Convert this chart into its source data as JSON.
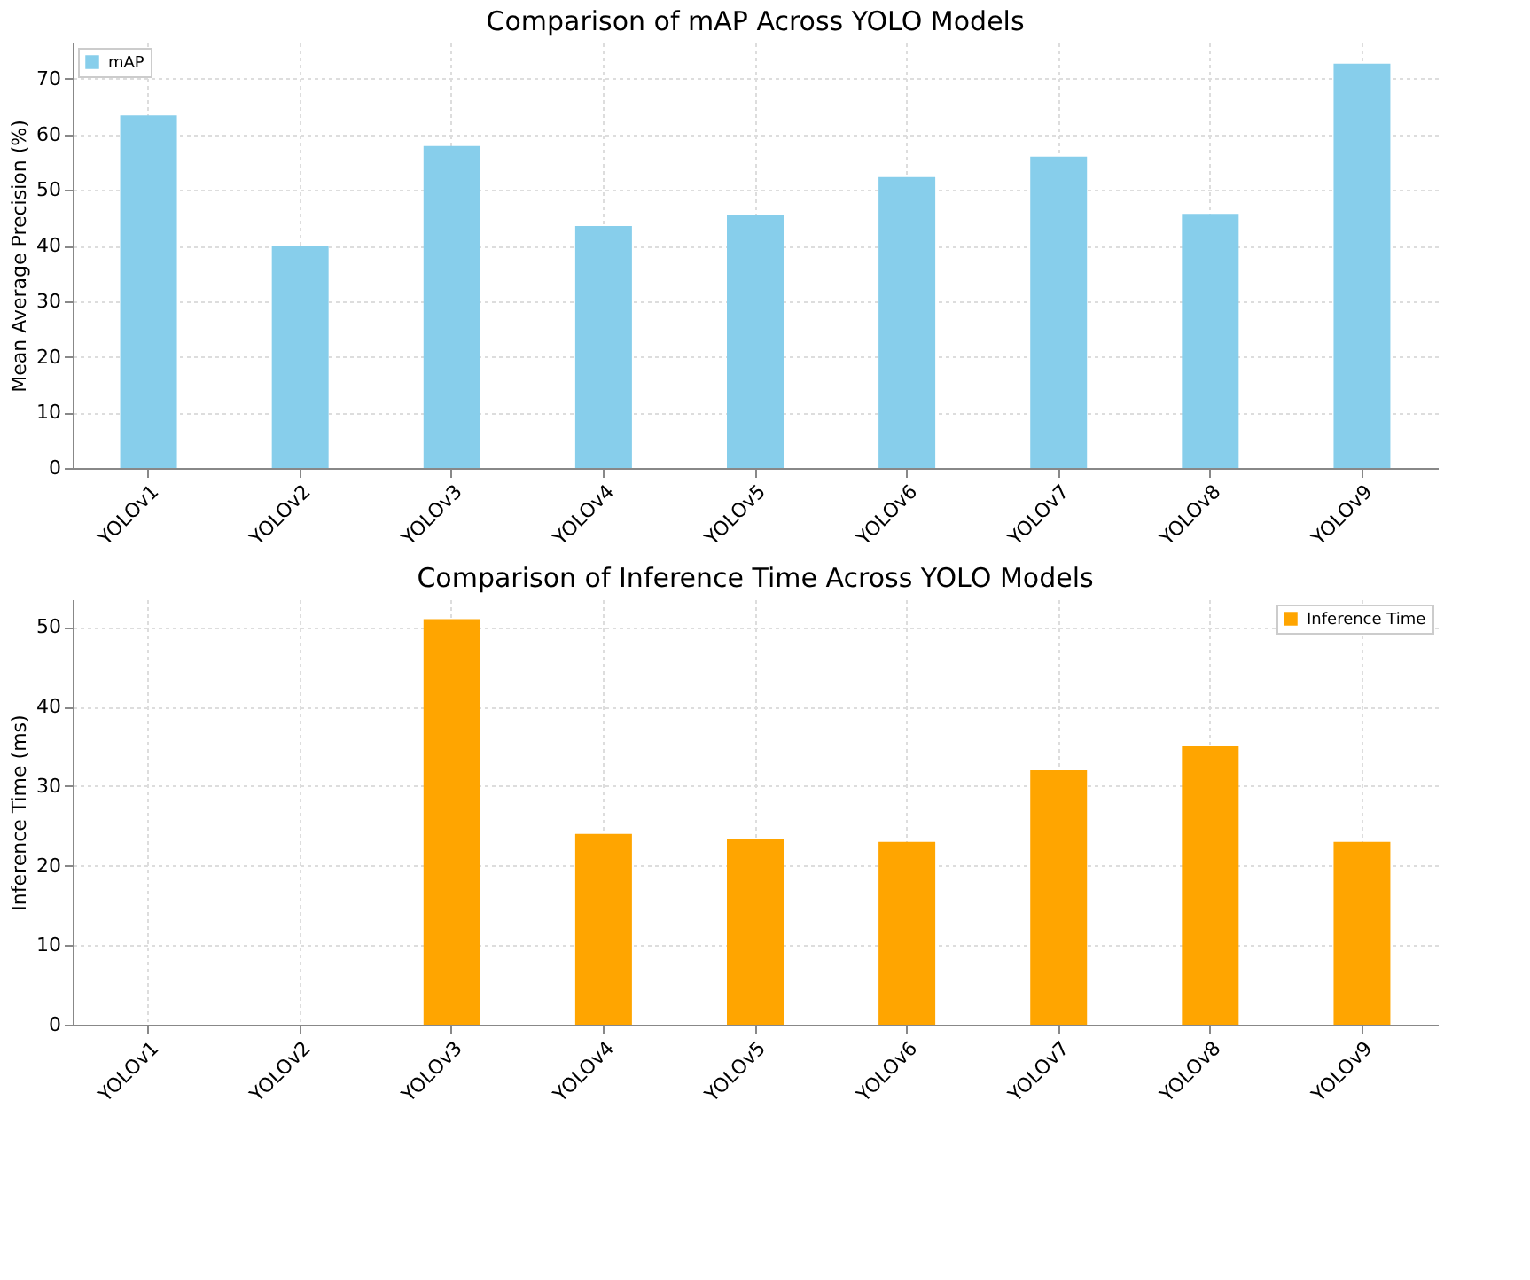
{
  "chart_data": [
    {
      "type": "bar",
      "title": "Comparison of mAP Across YOLO Models",
      "ylabel": "Mean Average Precision (%)",
      "categories": [
        "YOLOv1",
        "YOLOv2",
        "YOLOv3",
        "YOLOv4",
        "YOLOv5",
        "YOLOv6",
        "YOLOv7",
        "YOLOv8",
        "YOLOv9"
      ],
      "series": [
        {
          "name": "mAP",
          "color": "#87ceeb",
          "values": [
            63.4,
            40.0,
            57.9,
            43.5,
            45.6,
            52.3,
            56.0,
            45.7,
            72.7
          ]
        }
      ],
      "ylim": [
        0,
        76.5
      ],
      "yticks": [
        0,
        10,
        20,
        30,
        40,
        50,
        60,
        70
      ],
      "grid": true,
      "legend": "top left"
    },
    {
      "type": "bar",
      "title": "Comparison of Inference Time Across YOLO Models",
      "ylabel": "Inference Time (ms)",
      "categories": [
        "YOLOv1",
        "YOLOv2",
        "YOLOv3",
        "YOLOv4",
        "YOLOv5",
        "YOLOv6",
        "YOLOv7",
        "YOLOv8",
        "YOLOv9"
      ],
      "series": [
        {
          "name": "Inference Time",
          "color": "#ffa500",
          "values": [
            null,
            null,
            51,
            24,
            23.4,
            23,
            32,
            35,
            23
          ]
        }
      ],
      "ylim": [
        0,
        53.5
      ],
      "yticks": [
        0,
        10,
        20,
        30,
        40,
        50
      ],
      "grid": true,
      "legend": "top right"
    }
  ]
}
